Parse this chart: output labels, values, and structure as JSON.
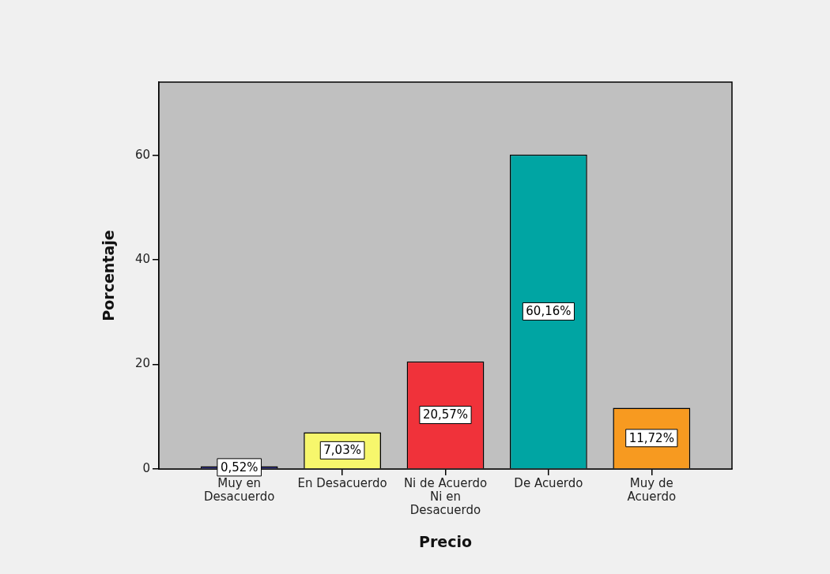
{
  "chart_data": {
    "type": "bar",
    "xlabel": "Precio",
    "ylabel": "Porcentaje",
    "categories": [
      "Muy en Desacuerdo",
      "En Desacuerdo",
      "Ni de Acuerdo Ni en Desacuerdo",
      "De Acuerdo",
      "Muy de Acuerdo"
    ],
    "values": [
      0.52,
      7.03,
      20.57,
      60.16,
      11.72
    ],
    "colors": [
      "#3a3a9c",
      "#f7f76c",
      "#f0323a",
      "#00a5a3",
      "#f79a20"
    ],
    "value_labels": [
      "0,52%",
      "7,03%",
      "20,57%",
      "60,16%",
      "11,72%"
    ],
    "ylim": [
      0,
      74
    ],
    "yticks": [
      0,
      20,
      40,
      60
    ],
    "grid": false,
    "legend": false
  }
}
